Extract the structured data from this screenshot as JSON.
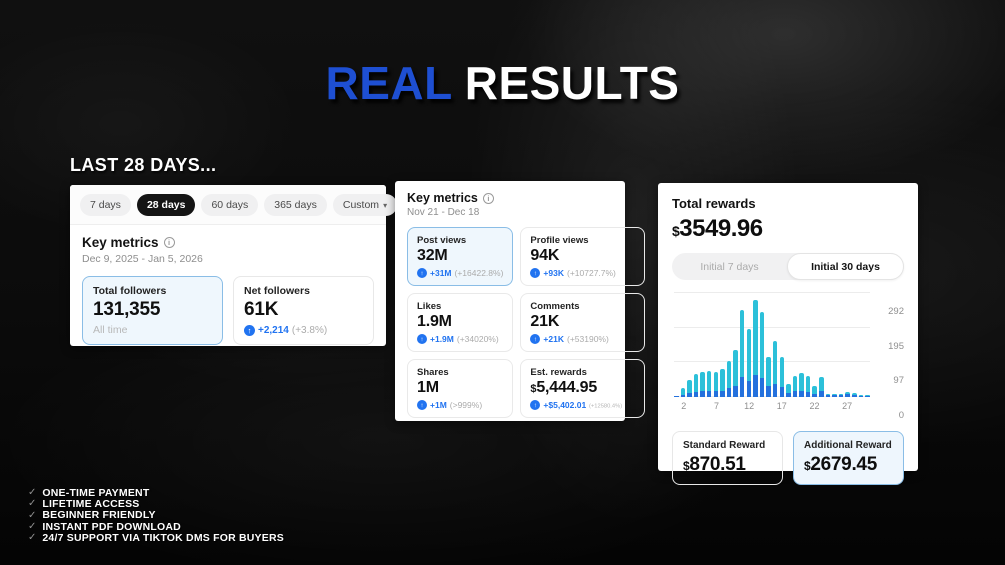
{
  "title": {
    "highlight": "REAL",
    "rest": "RESULTS"
  },
  "section_heading": "LAST 28 DAYS...",
  "icons": {
    "info": "i",
    "up": "↑",
    "caret": "▾",
    "check": "✓"
  },
  "colors": {
    "title_blue": "#1e4fd2",
    "accent_blue": "#2173f0",
    "selected_tile_bg": "#eff7fd",
    "selected_tile_border": "#8abde6",
    "bar_standard_blue": "#2471dd",
    "bar_additional_cyan": "#2cc0d9"
  },
  "followers_card": {
    "tabs": [
      {
        "label": "7 days"
      },
      {
        "label": "28 days"
      },
      {
        "label": "60 days"
      },
      {
        "label": "365 days"
      },
      {
        "label": "Custom"
      }
    ],
    "heading": "Key metrics",
    "date_range": "Dec 9, 2025 - Jan 5, 2026",
    "tiles": [
      {
        "label": "Total followers",
        "value": "131,355",
        "sub": "All time"
      },
      {
        "label": "Net followers",
        "value": "61K",
        "change": "+2,214",
        "change_pct": "(+3.8%)"
      }
    ]
  },
  "metrics_card": {
    "heading": "Key metrics",
    "date_range": "Nov 21 - Dec 18",
    "tiles": [
      {
        "label": "Post views",
        "value": "32M",
        "change": "+31M",
        "change_pct": "(+16422.8%)"
      },
      {
        "label": "Profile views",
        "value": "94K",
        "change": "+93K",
        "change_pct": "(+10727.7%)"
      },
      {
        "label": "Likes",
        "value": "1.9M",
        "change": "+1.9M",
        "change_pct": "(+34020%)"
      },
      {
        "label": "Comments",
        "value": "21K",
        "change": "+21K",
        "change_pct": "(+53190%)"
      },
      {
        "label": "Shares",
        "value": "1M",
        "change": "+1M",
        "change_pct": "(>999%)"
      },
      {
        "label": "Est. rewards",
        "currency": "$",
        "value": "5,444.95",
        "change": "+$5,402.01",
        "change_pct": "(+12580.4%)"
      }
    ]
  },
  "rewards_card": {
    "heading": "Total rewards",
    "currency": "$",
    "total": "3549.96",
    "segments": [
      {
        "label": "Initial 7 days"
      },
      {
        "label": "Initial 30 days"
      }
    ],
    "tiles": [
      {
        "label": "Standard Reward",
        "currency": "$",
        "value": "870.51"
      },
      {
        "label": "Additional Reward",
        "currency": "$",
        "value": "2679.45"
      }
    ]
  },
  "chart_data": {
    "type": "bar",
    "stacked": true,
    "x": [
      1,
      2,
      3,
      4,
      5,
      6,
      7,
      8,
      9,
      10,
      11,
      12,
      13,
      14,
      15,
      16,
      17,
      18,
      19,
      20,
      21,
      22,
      23,
      24,
      25,
      26,
      27,
      28,
      29,
      30
    ],
    "xticks": [
      2,
      7,
      12,
      17,
      22,
      27
    ],
    "yticks": [
      0,
      97,
      195,
      292
    ],
    "ylim": [
      0,
      292
    ],
    "xlabel": "",
    "ylabel": "",
    "grid": true,
    "legend": "none",
    "series": [
      {
        "name": "Standard Reward",
        "color": "#2471dd",
        "values": [
          2,
          7,
          12,
          15,
          16,
          16,
          16,
          17,
          24,
          30,
          57,
          46,
          62,
          53,
          30,
          36,
          28,
          12,
          16,
          18,
          15,
          9,
          17,
          5,
          5,
          5,
          8,
          6,
          4,
          3
        ]
      },
      {
        "name": "Additional Reward",
        "color": "#2cc0d9",
        "values": [
          2,
          19,
          36,
          49,
          54,
          56,
          54,
          61,
          78,
          102,
          188,
          144,
          210,
          185,
          82,
          122,
          84,
          24,
          42,
          50,
          43,
          21,
          39,
          3,
          3,
          3,
          6,
          4,
          2,
          2
        ]
      }
    ]
  },
  "checklist": [
    "ONE-TIME PAYMENT",
    "LIFETIME ACCESS",
    "BEGINNER FRIENDLY",
    "INSTANT PDF DOWNLOAD",
    "24/7 SUPPORT VIA TIKTOK DMS FOR BUYERS"
  ]
}
